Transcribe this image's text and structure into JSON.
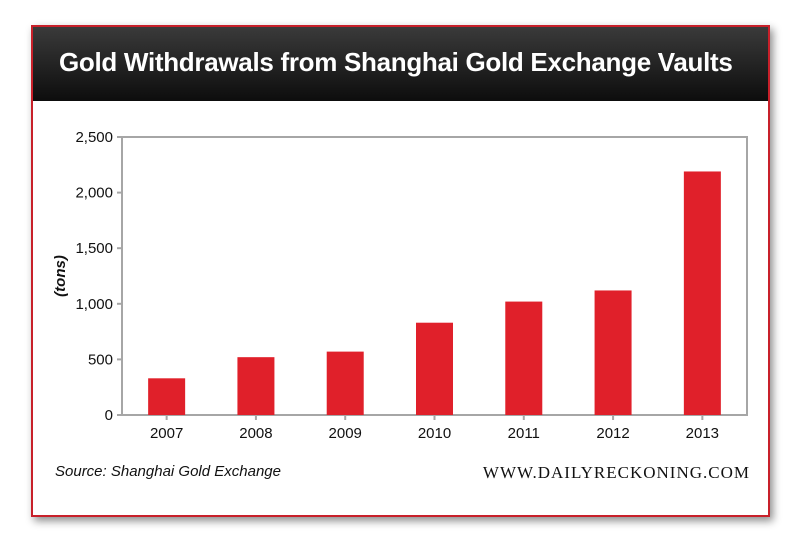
{
  "title": "Gold Withdrawals from Shanghai Gold Exchange Vaults",
  "source": "Source: Shanghai Gold Exchange",
  "website": "WWW.DAILYRECKONING.COM",
  "colors": {
    "bar": "#e0202a",
    "border": "#c8202a",
    "header": "#1a1a1a",
    "axis": "#a6a6a6"
  },
  "chart_data": {
    "type": "bar",
    "title": "Gold Withdrawals from Shanghai Gold Exchange Vaults",
    "xlabel": "",
    "ylabel": "(tons)",
    "categories": [
      "2007",
      "2008",
      "2009",
      "2010",
      "2011",
      "2012",
      "2013"
    ],
    "values": [
      330,
      520,
      570,
      830,
      1020,
      1120,
      2190
    ],
    "ylim": [
      0,
      2500
    ],
    "yticks": [
      0,
      500,
      1000,
      1500,
      2000,
      2500
    ],
    "ytick_labels": [
      "0",
      "500",
      "1,000",
      "1,500",
      "2,000",
      "2,500"
    ],
    "grid": false,
    "legend": "none"
  }
}
